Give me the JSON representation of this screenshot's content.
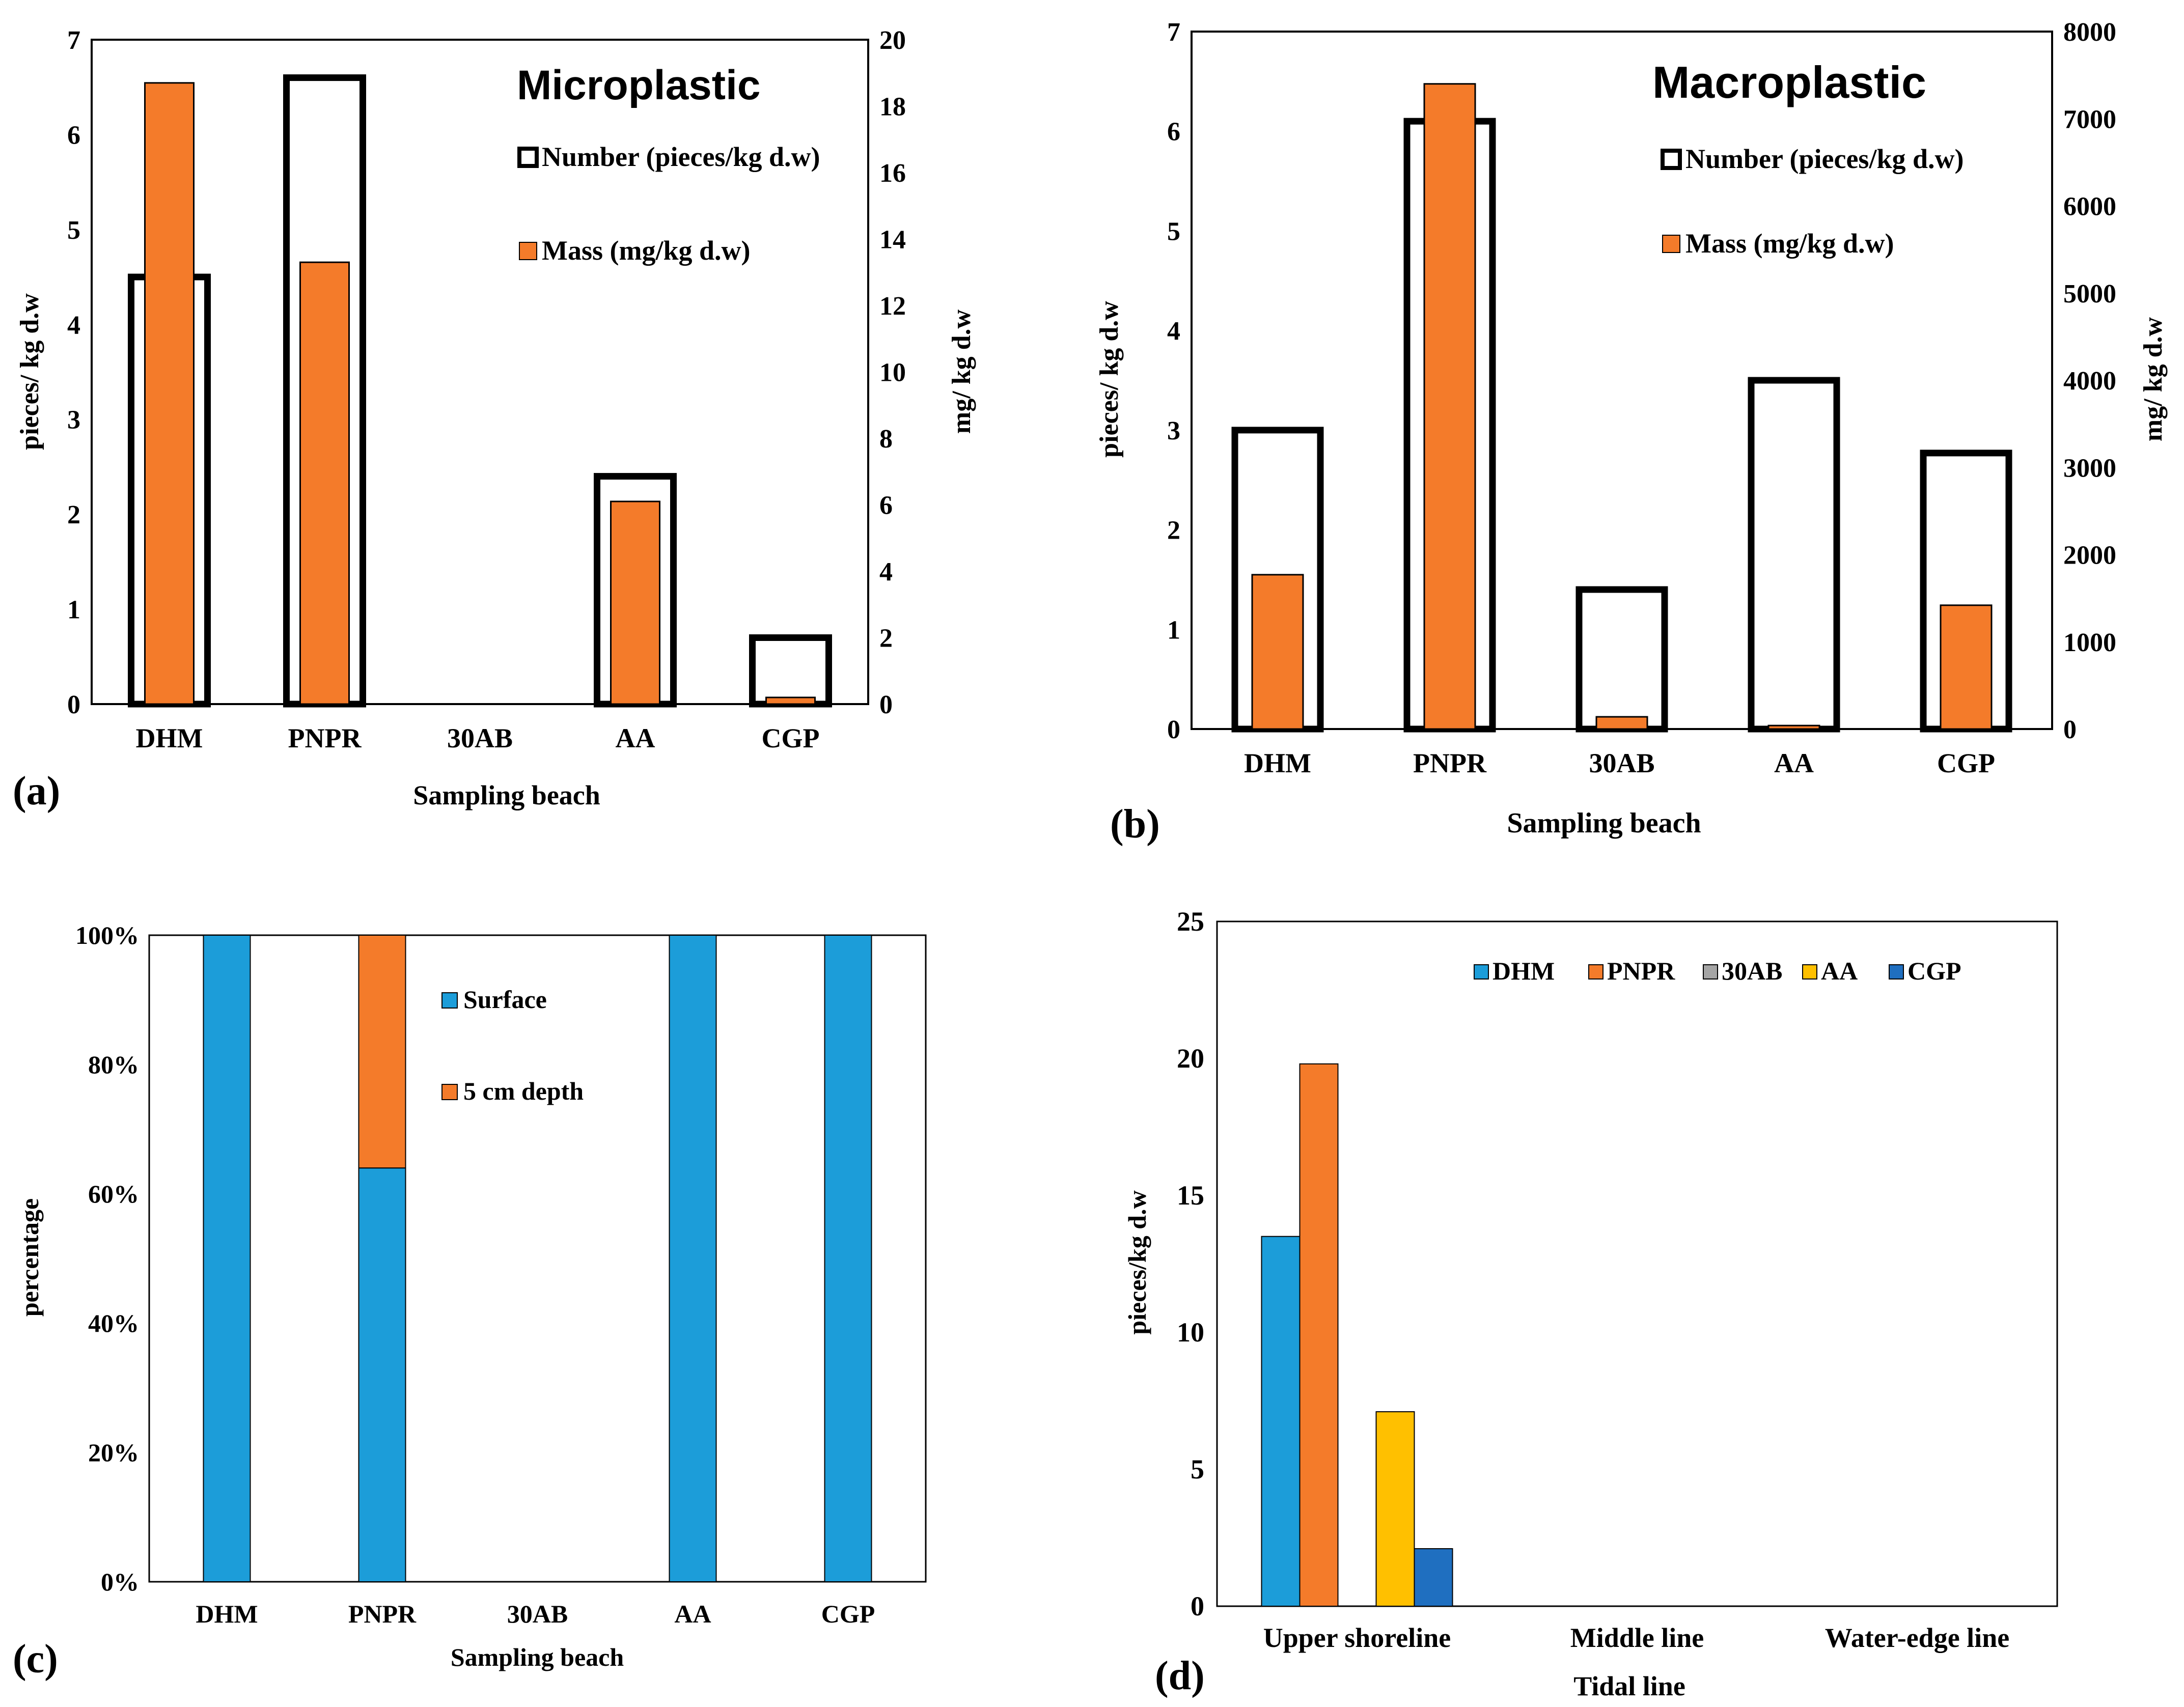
{
  "panel_labels": {
    "a": "(a)",
    "b": "(b)",
    "c": "(c)",
    "d": "(d)"
  },
  "colors": {
    "orange": "#F47B2A",
    "blue": "#1C9DD9",
    "gray": "#A5A5A5",
    "yellow": "#FFC000",
    "darkblue": "#1F6FC0",
    "outline": "#000000",
    "background": "#FFFFFF"
  },
  "chart_data": [
    {
      "id": "a",
      "type": "bar",
      "title": "Microplastic",
      "categories": [
        "DHM",
        "PNPR",
        "30AB",
        "AA",
        "CGP"
      ],
      "xlabel": "Sampling  beach",
      "ylabel": "pieces/ kg d.w",
      "y2label": "mg/ kg d.w",
      "ylim": [
        0,
        7
      ],
      "y2lim": [
        0,
        20
      ],
      "yticks": [
        "0",
        "1",
        "2",
        "3",
        "4",
        "5",
        "6",
        "7"
      ],
      "y2ticks": [
        "0",
        "2",
        "4",
        "6",
        "8",
        "10",
        "12",
        "14",
        "16",
        "18",
        "20"
      ],
      "series": [
        {
          "name": "Number (pieces/kg d.w)",
          "axis": "left",
          "style": "outline",
          "values": [
            4.5,
            6.6,
            0,
            2.4,
            0.7
          ]
        },
        {
          "name": "Mass (mg/kg d.w)",
          "axis": "right",
          "style": "filled",
          "values": [
            18.7,
            13.3,
            0,
            6.1,
            0.2
          ]
        }
      ]
    },
    {
      "id": "b",
      "type": "bar",
      "title": "Macroplastic",
      "categories": [
        "DHM",
        "PNPR",
        "30AB",
        "AA",
        "CGP"
      ],
      "xlabel": "Sampling beach",
      "ylabel": "pieces/ kg d.w",
      "y2label": "mg/ kg d.w",
      "ylim": [
        0,
        7
      ],
      "y2lim": [
        0,
        8000
      ],
      "yticks": [
        "0",
        "1",
        "2",
        "3",
        "4",
        "5",
        "6",
        "7"
      ],
      "y2ticks": [
        "0",
        "1000",
        "2000",
        "3000",
        "4000",
        "5000",
        "6000",
        "7000",
        "8000"
      ],
      "series": [
        {
          "name": "Number (pieces/kg d.w)",
          "axis": "left",
          "style": "outline",
          "values": [
            3.0,
            6.1,
            1.4,
            3.5,
            2.77
          ]
        },
        {
          "name": "Mass (mg/kg d.w)",
          "axis": "right",
          "style": "filled",
          "values": [
            1770,
            7400,
            140,
            40,
            1420
          ]
        }
      ]
    },
    {
      "id": "c",
      "type": "bar",
      "stacked": true,
      "categories": [
        "DHM",
        "PNPR",
        "30AB",
        "AA",
        "CGP"
      ],
      "xlabel": "Sampling beach",
      "ylabel": "percentage",
      "ylim": [
        0,
        100
      ],
      "yticks": [
        "0%",
        "20%",
        "40%",
        "60%",
        "80%",
        "100%"
      ],
      "series": [
        {
          "name": "Surface",
          "values": [
            100,
            64,
            0,
            100,
            100
          ]
        },
        {
          "name": "5 cm depth",
          "values": [
            0,
            36,
            0,
            0,
            0
          ]
        }
      ]
    },
    {
      "id": "d",
      "type": "bar",
      "categories": [
        "Upper shoreline",
        "Middle line",
        "Water-edge line"
      ],
      "xlabel": "Tidal line",
      "ylabel": "pieces/kg d.w",
      "ylim": [
        0,
        25
      ],
      "yticks": [
        "0",
        "5",
        "10",
        "15",
        "20",
        "25"
      ],
      "series": [
        {
          "name": "DHM",
          "values": [
            13.5,
            0,
            0
          ]
        },
        {
          "name": "PNPR",
          "values": [
            19.8,
            0,
            0
          ]
        },
        {
          "name": "30AB",
          "values": [
            0,
            0,
            0
          ]
        },
        {
          "name": "AA",
          "values": [
            7.1,
            0,
            0
          ]
        },
        {
          "name": "CGP",
          "values": [
            2.1,
            0,
            0
          ]
        }
      ]
    }
  ]
}
